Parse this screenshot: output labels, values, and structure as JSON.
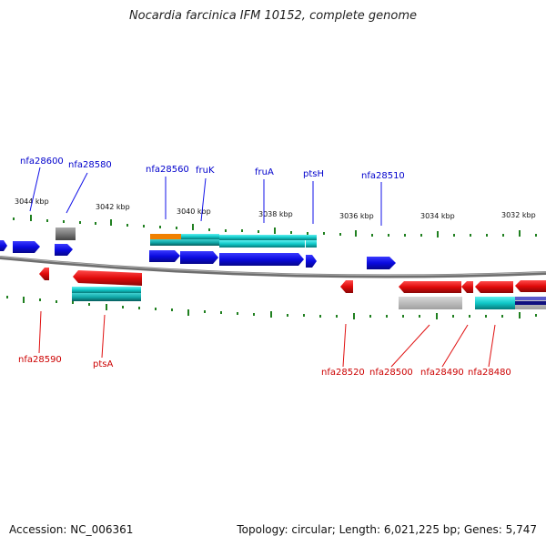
{
  "title": "Nocardia farcinica IFM 10152, complete genome",
  "footer": {
    "accession": "Accession: NC_006361",
    "stats": "Topology: circular; Length: 6,021,225 bp; Genes: 5,747"
  },
  "colors": {
    "forward_gene": "#1010e8",
    "reverse_gene": "#e01010",
    "gray_gene": "#808080",
    "cyan_feature": "#10c8c8",
    "teal_feature": "#10a8a8",
    "orange_feature": "#f08000",
    "navy_feature": "#101080",
    "backbone": "#707070",
    "tick": "#208020",
    "forward_label": "#0000cc",
    "reverse_label": "#cc0000"
  },
  "kbp_ticks": [
    "3044 kbp",
    "3042 kbp",
    "3040 kbp",
    "3038 kbp",
    "3036 kbp",
    "3034 kbp",
    "3032 kbp"
  ],
  "top_labels": [
    "nfa28600",
    "nfa28580",
    "nfa28560",
    "fruK",
    "fruA",
    "ptsH",
    "nfa28510"
  ],
  "bottom_labels": [
    "nfa28590",
    "ptsA",
    "nfa28520",
    "nfa28500",
    "nfa28490",
    "nfa28480"
  ]
}
